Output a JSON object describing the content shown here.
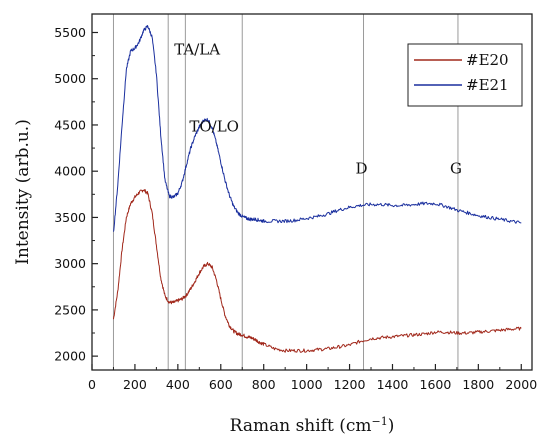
{
  "chart_data": {
    "type": "line",
    "xlabel": "Raman shift (cm",
    "xlabel_sup": "−1",
    "xlabel_end": ")",
    "ylabel": "Intensity (arb.u.)",
    "xlim": [
      0,
      2050
    ],
    "ylim": [
      1850,
      5700
    ],
    "x_ticks": [
      0,
      200,
      400,
      600,
      800,
      1000,
      1200,
      1400,
      1600,
      1800,
      2000
    ],
    "y_ticks": [
      2000,
      2500,
      3000,
      3500,
      4000,
      4500,
      5000,
      5500
    ],
    "grid": false,
    "legend_position": "top-right",
    "series": [
      {
        "name": "#E20",
        "color": "#a1281b",
        "x": [
          100,
          120,
          140,
          160,
          180,
          200,
          220,
          240,
          260,
          280,
          300,
          320,
          340,
          360,
          380,
          400,
          420,
          440,
          460,
          480,
          500,
          520,
          540,
          560,
          580,
          600,
          620,
          640,
          660,
          680,
          700,
          720,
          740,
          760,
          780,
          800,
          850,
          900,
          950,
          1000,
          1050,
          1100,
          1150,
          1200,
          1250,
          1300,
          1350,
          1400,
          1450,
          1500,
          1550,
          1600,
          1650,
          1700,
          1750,
          1800,
          1850,
          1900,
          1950,
          2000
        ],
        "y": [
          2400,
          2700,
          3150,
          3500,
          3650,
          3720,
          3770,
          3800,
          3760,
          3550,
          3200,
          2850,
          2650,
          2580,
          2580,
          2600,
          2620,
          2660,
          2730,
          2810,
          2900,
          2970,
          3000,
          2960,
          2820,
          2620,
          2440,
          2330,
          2270,
          2240,
          2230,
          2210,
          2200,
          2180,
          2150,
          2130,
          2080,
          2060,
          2060,
          2060,
          2070,
          2080,
          2100,
          2120,
          2160,
          2190,
          2200,
          2210,
          2220,
          2230,
          2240,
          2260,
          2260,
          2250,
          2250,
          2260,
          2270,
          2280,
          2290,
          2300
        ]
      },
      {
        "name": "#E21",
        "color": "#1a2f9e",
        "x": [
          100,
          120,
          140,
          160,
          180,
          200,
          220,
          240,
          260,
          280,
          300,
          320,
          340,
          360,
          380,
          400,
          420,
          440,
          460,
          480,
          500,
          520,
          540,
          560,
          580,
          600,
          620,
          640,
          660,
          680,
          700,
          720,
          740,
          760,
          780,
          800,
          850,
          900,
          950,
          1000,
          1050,
          1100,
          1150,
          1200,
          1250,
          1300,
          1350,
          1400,
          1450,
          1500,
          1550,
          1600,
          1650,
          1700,
          1750,
          1800,
          1850,
          1900,
          1950,
          2000
        ],
        "y": [
          3330,
          3850,
          4500,
          5100,
          5300,
          5330,
          5400,
          5520,
          5570,
          5450,
          5050,
          4400,
          3900,
          3730,
          3720,
          3760,
          3880,
          4070,
          4250,
          4380,
          4480,
          4550,
          4560,
          4470,
          4300,
          4100,
          3900,
          3740,
          3620,
          3550,
          3510,
          3490,
          3480,
          3480,
          3470,
          3460,
          3460,
          3460,
          3470,
          3490,
          3510,
          3540,
          3580,
          3610,
          3630,
          3640,
          3640,
          3630,
          3630,
          3640,
          3650,
          3650,
          3620,
          3580,
          3550,
          3520,
          3500,
          3480,
          3460,
          3440
        ]
      }
    ],
    "annotations": [
      {
        "text": "TA/LA",
        "x": 355
      },
      {
        "text": "TO/LO",
        "x": 435
      },
      {
        "text": "D",
        "x": 1265
      },
      {
        "text": "G",
        "x": 1705
      }
    ],
    "vlines": [
      100,
      355,
      435,
      700,
      1265,
      1705
    ]
  }
}
